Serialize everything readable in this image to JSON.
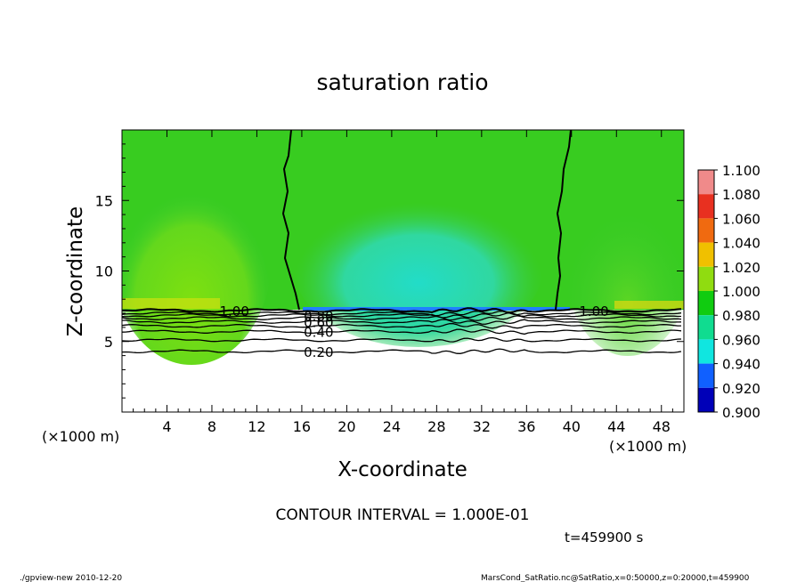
{
  "chart_data": {
    "type": "heatmap",
    "title": "saturation ratio",
    "xlabel": "X-coordinate",
    "ylabel": "Z-coordinate",
    "x_unit_label": "(×1000 m)",
    "y_unit_label": "(×1000 m)",
    "xlim": [
      0,
      50
    ],
    "ylim": [
      0,
      20
    ],
    "x_ticks": [
      4,
      8,
      12,
      16,
      20,
      24,
      28,
      32,
      36,
      40,
      44,
      48
    ],
    "y_ticks": [
      5,
      10,
      15
    ],
    "contour_interval_text": "CONTOUR INTERVAL = 1.000E-01",
    "time_text": "t=459900 s",
    "contour_levels": [
      {
        "value": 0.2,
        "label": "0.20",
        "z": 4.3
      },
      {
        "value": 0.3,
        "label": "",
        "z": 5.1
      },
      {
        "value": 0.4,
        "label": "0.40",
        "z": 5.7
      },
      {
        "value": 0.5,
        "label": "",
        "z": 6.1
      },
      {
        "value": 0.6,
        "label": "0.60",
        "z": 6.4
      },
      {
        "value": 0.7,
        "label": "",
        "z": 6.65
      },
      {
        "value": 0.8,
        "label": "0.80",
        "z": 6.85
      },
      {
        "value": 0.9,
        "label": "",
        "z": 7.0
      },
      {
        "value": 1.0,
        "label": "1.00",
        "z": 7.2
      }
    ],
    "colorbar": {
      "levels": [
        "1.100",
        "1.080",
        "1.060",
        "1.040",
        "1.020",
        "1.000",
        "0.980",
        "0.960",
        "0.940",
        "0.920",
        "0.900"
      ],
      "colors": [
        "#f08a8a",
        "#e83020",
        "#f06a10",
        "#f0c000",
        "#90dc10",
        "#10cc10",
        "#10dc90",
        "#10e6e0",
        "#1060ff",
        "#0000b8",
        "#6010b0"
      ]
    },
    "saturation_one_lines_x": [
      16,
      38.5
    ],
    "subsaturated_region_color": "#20dcc0",
    "supersaturated_region_color": "#30c830"
  },
  "footer": {
    "left": "./gpview-new  2010-12-20",
    "right": "MarsCond_SatRatio.nc@SatRatio,x=0:50000,z=0:20000,t=459900"
  }
}
